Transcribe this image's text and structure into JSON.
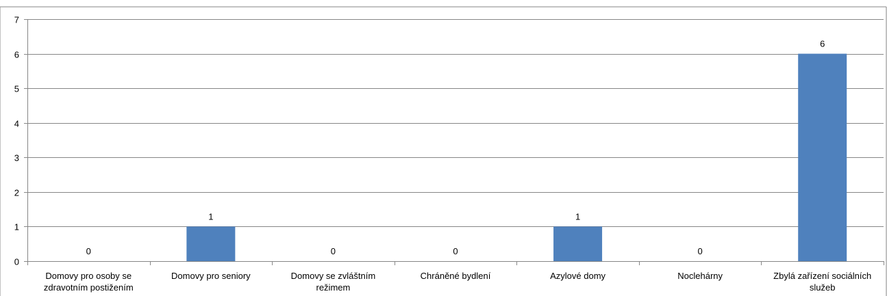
{
  "chart_data": {
    "type": "bar",
    "title": "",
    "categories": [
      [
        "Domovy pro osoby se",
        "zdravotním postižením"
      ],
      [
        "Domovy pro seniory"
      ],
      [
        "Domovy se zvláštním",
        "režimem"
      ],
      [
        "Chráněné bydlení"
      ],
      [
        "Azylové domy"
      ],
      [
        "Noclehárny"
      ],
      [
        "Zbylá zařízení sociálních",
        "služeb"
      ]
    ],
    "values": [
      0,
      1,
      0,
      0,
      1,
      0,
      6
    ],
    "data_labels": [
      "0",
      "1",
      "0",
      "0",
      "1",
      "0",
      "6"
    ],
    "ylim": [
      0,
      7
    ],
    "yticks": [
      "0",
      "1",
      "2",
      "3",
      "4",
      "5",
      "6",
      "7"
    ],
    "xlabel": "",
    "ylabel": "",
    "grid": true,
    "bar_color": "#4F81BD",
    "grid_color": "#868686",
    "axis_color": "#868686"
  }
}
